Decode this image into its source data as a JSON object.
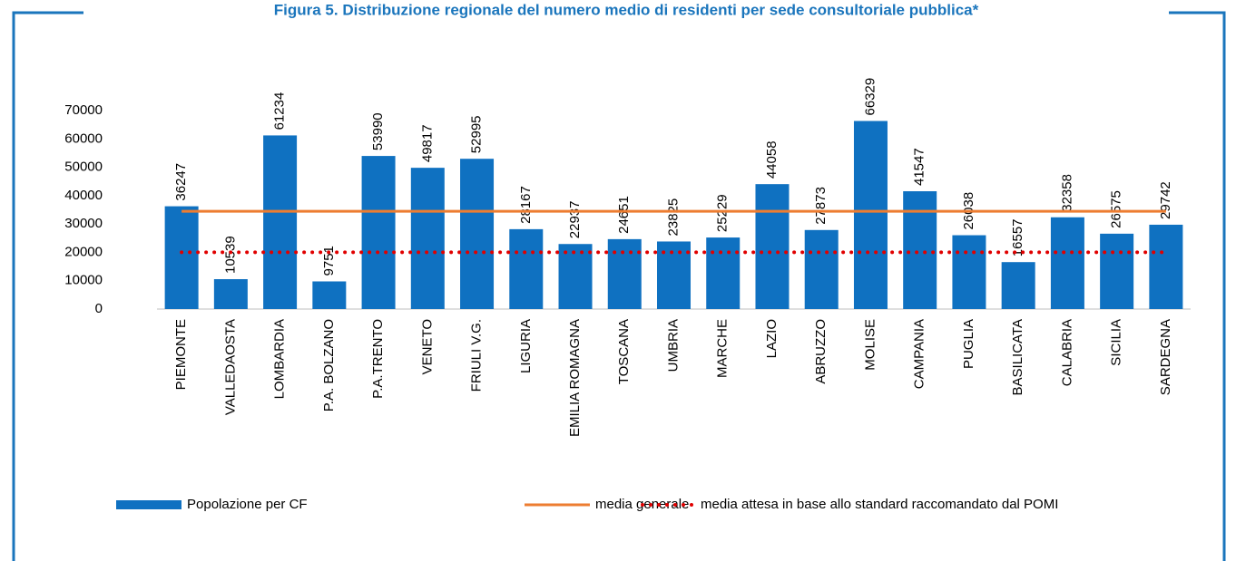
{
  "chart_data": {
    "type": "bar",
    "title": "Figura 5. Distribuzione regionale del numero medio di residenti per sede consultoriale pubblica*",
    "categories": [
      "PIEMONTE",
      "VALLEDAOSTA",
      "LOMBARDIA",
      "P.A. BOLZANO",
      "P.A.TRENTO",
      "VENETO",
      "FRIULI V.G.",
      "LIGURIA",
      "EMILIA ROMAGNA",
      "TOSCANA",
      "UMBRIA",
      "MARCHE",
      "LAZIO",
      "ABRUZZO",
      "MOLISE",
      "CAMPANIA",
      "PUGLIA",
      "BASILICATA",
      "CALABRIA",
      "SICILIA",
      "SARDEGNA"
    ],
    "series": [
      {
        "name": "Popolazione per CF",
        "type": "bar",
        "color": "#0f71c1",
        "values": [
          36247,
          10539,
          61234,
          9751,
          53990,
          49817,
          52995,
          28167,
          22937,
          24651,
          23825,
          25229,
          44058,
          27873,
          66329,
          41547,
          26038,
          16557,
          32358,
          26575,
          29742
        ]
      },
      {
        "name": "media generale",
        "type": "line",
        "color": "#ed7d31",
        "values": [
          34500,
          34500,
          34500,
          34500,
          34500,
          34500,
          34500,
          34500,
          34500,
          34500,
          34500,
          34500,
          34500,
          34500,
          34500,
          34500,
          34500,
          34500,
          34500,
          34500,
          34500
        ]
      },
      {
        "name": "media attesa in base allo standard raccomandato dal POMI",
        "type": "dotted",
        "color": "#e00000",
        "values": [
          20000,
          20000,
          20000,
          20000,
          20000,
          20000,
          20000,
          20000,
          20000,
          20000,
          20000,
          20000,
          20000,
          20000,
          20000,
          20000,
          20000,
          20000,
          20000,
          20000,
          20000
        ]
      }
    ],
    "ylim": [
      0,
      70000
    ],
    "yticks": [
      0,
      10000,
      20000,
      30000,
      40000,
      50000,
      60000,
      70000
    ],
    "grid": false
  }
}
